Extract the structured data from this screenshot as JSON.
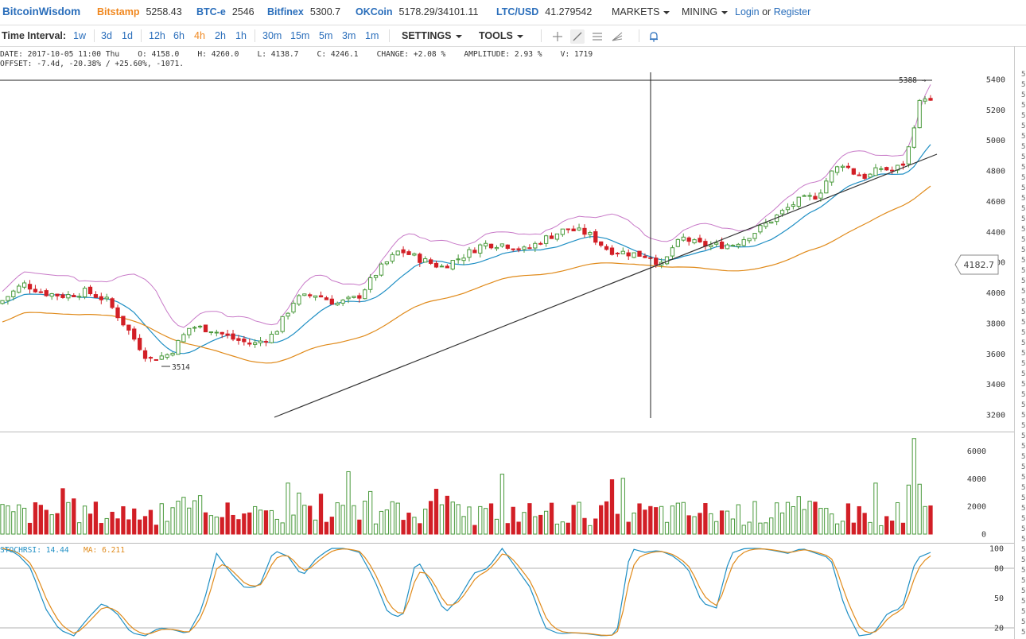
{
  "header": {
    "logo": "BitcoinWisdom",
    "exchanges": [
      {
        "name": "Bitstamp",
        "price": "5258.43",
        "color": "#f0871e"
      },
      {
        "name": "BTC-e",
        "price": "2546",
        "color": "#2a6ebb"
      },
      {
        "name": "Bitfinex",
        "price": "5300.7",
        "color": "#2a6ebb"
      },
      {
        "name": "OKCoin",
        "price": "5178.29/34101.11",
        "color": "#2a6ebb"
      },
      {
        "name": "LTC/USD",
        "price": "41.279542",
        "color": "#2a6ebb"
      }
    ],
    "markets_label": "MARKETS",
    "mining_label": "MINING",
    "login_label": "Login",
    "or_label": "or",
    "register_label": "Register"
  },
  "toolbar": {
    "time_interval_label": "Time Interval:",
    "intervals": [
      "1w",
      "3d",
      "1d",
      "12h",
      "6h",
      "4h",
      "2h",
      "1h",
      "30m",
      "15m",
      "5m",
      "3m",
      "1m"
    ],
    "active_interval": "4h",
    "settings_label": "SETTINGS",
    "tools_label": "TOOLS",
    "icons": [
      "crosshair-icon",
      "line-draw-icon",
      "horizontal-lines-icon",
      "fan-icon",
      "alarm-bell-icon"
    ]
  },
  "info": {
    "line1": "DATE: 2017-10-05 11:00 Thu    O: 4158.0    H: 4260.0    L: 4138.7    C: 4246.1    CHANGE: +2.08 %    AMPLITUDE: 2.93 %    V: 1719",
    "line2": "OFFSET: -7.4d, -20.38% / +25.60%, -1071."
  },
  "chart_data": [
    {
      "type": "candlestick",
      "y_ticks": [
        5400,
        5200,
        5000,
        4800,
        4600,
        4400,
        4200,
        4000,
        3800,
        3600,
        3400,
        3200
      ],
      "ylim": [
        3180,
        5420
      ],
      "low_label": "3514",
      "high_label": "5388",
      "crosshair_price": "4182.7",
      "candles_count": 170,
      "colors": {
        "up": "#4a9a3c",
        "down": "#d21f26",
        "bb": "#c87ac8",
        "ma_blue": "#1f8fc4",
        "ma_orange": "#e08a1a"
      }
    },
    {
      "type": "bar",
      "name": "volume",
      "y_ticks": [
        6000,
        4000,
        2000,
        0
      ],
      "ylim": [
        0,
        7000
      ]
    },
    {
      "type": "line",
      "indicator_label": "STOCHRSI: 14.44",
      "ma_label": "MA: 6.211",
      "y_ticks": [
        100,
        80,
        50,
        20
      ],
      "ylim": [
        12,
        104
      ]
    }
  ]
}
